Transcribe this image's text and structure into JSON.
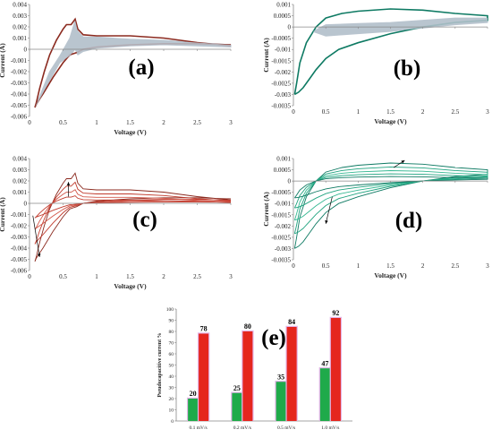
{
  "colors": {
    "red_dark": "#8b2a1f",
    "red": "#c0392b",
    "red_light": "#d2574a",
    "teal_dark": "#0e7a63",
    "teal": "#1fa37f",
    "teal_light": "#35b892",
    "gray_fill": "#b8c4cf",
    "bar_green": "#1faa4a",
    "bar_red": "#e5261e",
    "bar_glow": "#e4b6e8",
    "axis": "#888888"
  },
  "chart_data": [
    {
      "panel": "a",
      "label": "(a)",
      "type": "line",
      "xlabel": "Voltage (V)",
      "ylabel": "Current (A)",
      "xlim": [
        0,
        3
      ],
      "ylim": [
        -0.006,
        0.004
      ],
      "xticks": [
        "0",
        "0.5",
        "1",
        "1.5",
        "2",
        "2.5",
        "3"
      ],
      "yticks": [
        "0.004",
        "0.003",
        "0.002",
        "0.001",
        "0",
        "-0.001",
        "-0.002",
        "-0.003",
        "-0.004",
        "-0.005",
        "-0.006"
      ],
      "series": [
        {
          "style": "measured",
          "color": "#8b2a1f",
          "x": [
            3,
            2.5,
            2.0,
            1.5,
            1.0,
            0.8,
            0.72,
            0.68,
            0.62,
            0.55,
            0.5,
            0.4,
            0.3,
            0.22,
            0.15,
            0.1,
            0.08,
            0.1,
            0.2,
            0.35,
            0.5,
            0.6,
            0.65,
            0.7,
            0.8,
            1.0,
            1.5,
            2.0,
            2.5,
            3
          ],
          "y": [
            0.0003,
            0.0006,
            0.001,
            0.0012,
            0.0012,
            0.0013,
            0.0018,
            0.0027,
            0.0022,
            0.0022,
            0.0018,
            0.0008,
            -0.0005,
            -0.002,
            -0.0035,
            -0.0048,
            -0.0052,
            -0.0049,
            -0.004,
            -0.0025,
            -0.0012,
            -0.0005,
            -0.0004,
            -0.0003,
            0.0,
            0.0002,
            0.0004,
            0.0005,
            0.0005,
            0.0004
          ]
        },
        {
          "style": "fitted-fill",
          "color": "#b8c4cf",
          "x": [
            0.08,
            0.15,
            0.3,
            0.45,
            0.6,
            0.68,
            0.72,
            0.8,
            1.0,
            1.5,
            2.0,
            2.5,
            3,
            3,
            2.5,
            2.0,
            1.5,
            1.0,
            0.8,
            0.72,
            0.68,
            0.6,
            0.45,
            0.3,
            0.15,
            0.08
          ],
          "y": [
            -0.0052,
            -0.0042,
            -0.002,
            -0.0006,
            0.001,
            0.0026,
            0.0016,
            0.0011,
            0.0011,
            0.0009,
            0.0008,
            0.0006,
            0.0004,
            0.0002,
            0.0003,
            0.0004,
            0.0003,
            0.0001,
            -0.0002,
            -0.0005,
            0.0,
            -0.0006,
            -0.0012,
            -0.0028,
            -0.0045,
            -0.0052
          ]
        }
      ]
    },
    {
      "panel": "b",
      "label": "(b)",
      "type": "line",
      "xlabel": "Voltage (V)",
      "ylabel": "Current (A)",
      "xlim": [
        0,
        3
      ],
      "ylim": [
        -0.0035,
        0.001
      ],
      "xticks": [
        "0",
        "0.5",
        "1",
        "1.5",
        "2",
        "2.5",
        "3"
      ],
      "yticks": [
        "0.001",
        "0.0005",
        "0",
        "-0.0005",
        "-0.001",
        "-0.0015",
        "-0.002",
        "-0.0025",
        "-0.003",
        "-0.0035"
      ],
      "series": [
        {
          "style": "measured",
          "color": "#0e7a63",
          "x": [
            0.02,
            0.05,
            0.1,
            0.2,
            0.35,
            0.5,
            0.75,
            1.0,
            1.5,
            2.0,
            2.5,
            3,
            3,
            2.5,
            2.0,
            1.5,
            1.0,
            0.7,
            0.5,
            0.35,
            0.25,
            0.15,
            0.08,
            0.02
          ],
          "y": [
            -0.003,
            -0.0025,
            -0.0016,
            -0.0007,
            0.0,
            0.0004,
            0.0006,
            0.0007,
            0.0008,
            0.00075,
            0.0006,
            0.0005,
            0.0003,
            0.0002,
            0.0,
            -0.0003,
            -0.0007,
            -0.001,
            -0.0014,
            -0.0019,
            -0.0023,
            -0.0027,
            -0.0029,
            -0.003
          ]
        },
        {
          "style": "fitted-fill",
          "color": "#b8c4cf",
          "x": [
            0.3,
            0.5,
            1.0,
            1.5,
            2.0,
            2.5,
            3,
            3,
            2.5,
            2.0,
            1.5,
            1.0,
            0.5,
            0.3
          ],
          "y": [
            -0.0002,
            0.0001,
            0.00015,
            0.0002,
            0.0003,
            0.0004,
            0.0004,
            0.0002,
            0.0001,
            -5e-05,
            -0.0002,
            -0.0003,
            -0.0004,
            -0.0002
          ]
        }
      ]
    },
    {
      "panel": "c",
      "label": "(c)",
      "type": "line",
      "xlabel": "Voltage (V)",
      "ylabel": "Current (A)",
      "xlim": [
        0,
        3
      ],
      "ylim": [
        -0.006,
        0.004
      ],
      "xticks": [
        "0",
        "0.5",
        "1",
        "1.5",
        "2",
        "2.5",
        "3"
      ],
      "yticks": [
        "0.004",
        "0.003",
        "0.002",
        "0.001",
        "0",
        "-0.001",
        "-0.002",
        "-0.003",
        "-0.004",
        "-0.005",
        "-0.006"
      ],
      "scales": [
        1.0,
        0.7,
        0.45,
        0.25
      ],
      "x": [
        3,
        2.5,
        2.0,
        1.5,
        1.0,
        0.8,
        0.72,
        0.68,
        0.62,
        0.55,
        0.5,
        0.4,
        0.3,
        0.22,
        0.15,
        0.1,
        0.08,
        0.1,
        0.2,
        0.35,
        0.5,
        0.6,
        0.65,
        0.7,
        0.8,
        1.0,
        1.5,
        2.0,
        2.5,
        3
      ],
      "y": [
        0.0003,
        0.0006,
        0.001,
        0.0012,
        0.0012,
        0.0013,
        0.0018,
        0.0027,
        0.0022,
        0.0022,
        0.0018,
        0.0008,
        -0.0005,
        -0.002,
        -0.0035,
        -0.0048,
        -0.0052,
        -0.0049,
        -0.004,
        -0.0025,
        -0.0012,
        -0.0005,
        -0.0004,
        -0.0003,
        0.0,
        0.0002,
        0.0004,
        0.0005,
        0.0005,
        0.0004
      ]
    },
    {
      "panel": "d",
      "label": "(d)",
      "type": "line",
      "xlabel": "Voltage (V)",
      "ylabel": "Current (A)",
      "xlim": [
        0,
        3
      ],
      "ylim": [
        -0.0035,
        0.001
      ],
      "xticks": [
        "0",
        "0.5",
        "1",
        "1.5",
        "2",
        "2.5",
        "3"
      ],
      "yticks": [
        "0.001",
        "0.0005",
        "0",
        "-0.0005",
        "-0.001",
        "-0.0015",
        "-0.002",
        "-0.0025",
        "-0.003",
        "-0.0035"
      ],
      "scales": [
        1.0,
        0.78,
        0.58,
        0.4,
        0.25
      ],
      "x": [
        0.02,
        0.05,
        0.1,
        0.2,
        0.35,
        0.5,
        0.75,
        1.0,
        1.5,
        2.0,
        2.5,
        3,
        3,
        2.5,
        2.0,
        1.5,
        1.0,
        0.7,
        0.5,
        0.35,
        0.25,
        0.15,
        0.08,
        0.02
      ],
      "y": [
        -0.003,
        -0.0025,
        -0.0016,
        -0.0007,
        0.0,
        0.0004,
        0.0006,
        0.0007,
        0.0008,
        0.00075,
        0.0006,
        0.0005,
        0.0003,
        0.0002,
        0.0,
        -0.0003,
        -0.0007,
        -0.001,
        -0.0014,
        -0.0019,
        -0.0023,
        -0.0027,
        -0.0029,
        -0.003
      ]
    },
    {
      "panel": "e",
      "label": "(e)",
      "type": "bar",
      "ylabel": "Pseudocapacitive current %",
      "ylim": [
        0,
        100
      ],
      "yticks": [
        "0",
        "10",
        "20",
        "30",
        "40",
        "50",
        "60",
        "70",
        "80",
        "90",
        "100"
      ],
      "categories": [
        "0.1 mV/s",
        "0.2 mV/s",
        "0.5 mV/s",
        "1.0 mV/s"
      ],
      "series": [
        {
          "color": "#1faa4a",
          "values": [
            20,
            25,
            35,
            47
          ]
        },
        {
          "color": "#e5261e",
          "values": [
            78,
            80,
            84,
            92
          ]
        }
      ],
      "data_labels": [
        [
          "20",
          "25",
          "35",
          "47"
        ],
        [
          "78",
          "80",
          "84",
          "92"
        ]
      ]
    }
  ]
}
